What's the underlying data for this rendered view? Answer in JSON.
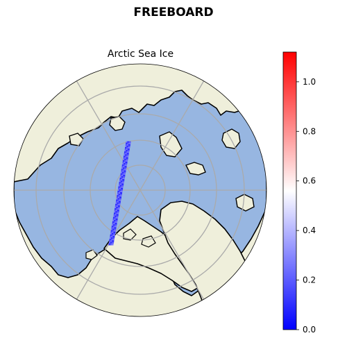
{
  "figure": {
    "suptitle": "FREEBOARD",
    "map_title": "Arctic Sea Ice"
  },
  "map": {
    "projection": "north-polar-stereographic",
    "ocean_color": "#97b6e1",
    "land_color": "#efefdb",
    "coastline_color": "#000000",
    "gridline_color": "#aaaaaa",
    "track": {
      "description_color_low": "#3333ff",
      "values_range": [
        0.15,
        0.3
      ]
    }
  },
  "colorbar": {
    "cmap": "bwr",
    "min": 0.0,
    "max": 1.12,
    "ticks": [
      {
        "value": 0.0,
        "label": "0.0"
      },
      {
        "value": 0.2,
        "label": "0.2"
      },
      {
        "value": 0.4,
        "label": "0.4"
      },
      {
        "value": 0.6,
        "label": "0.6"
      },
      {
        "value": 0.8,
        "label": "0.8"
      },
      {
        "value": 1.0,
        "label": "1.0"
      }
    ]
  }
}
